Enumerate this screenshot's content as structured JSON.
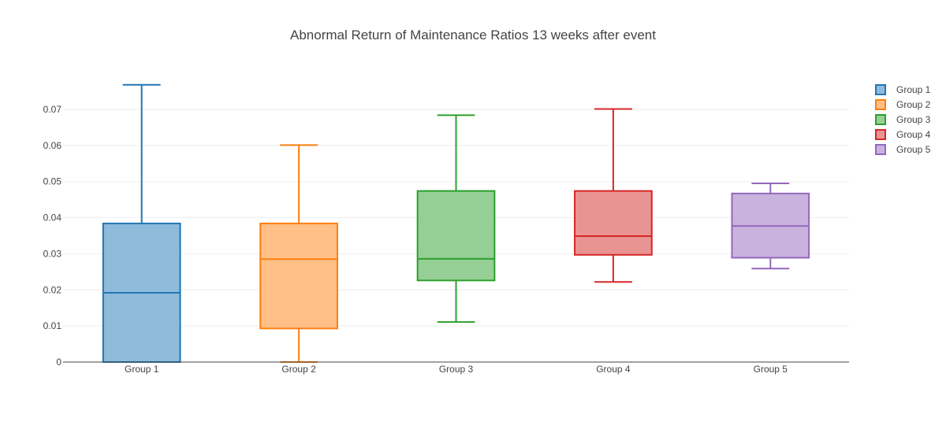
{
  "chart_data": {
    "type": "box",
    "title": "Abnormal Return of Maintenance Ratios 13 weeks after event",
    "xlabel": "",
    "ylabel": "",
    "ylim": [
      0,
      0.0785
    ],
    "yticks": [
      0,
      0.01,
      0.02,
      0.03,
      0.04,
      0.05,
      0.06,
      0.07
    ],
    "ytick_labels": [
      "0",
      "0.01",
      "0.02",
      "0.03",
      "0.04",
      "0.05",
      "0.06",
      "0.07"
    ],
    "grid": true,
    "legend_position": "top-right",
    "categories": [
      "Group 1",
      "Group 2",
      "Group 3",
      "Group 4",
      "Group 5"
    ],
    "series": [
      {
        "name": "Group 1",
        "color": "#1f77b4",
        "fill": "#8fbbdb",
        "min": 0.0,
        "q1": 0.0,
        "median": 0.0192,
        "q3": 0.0384,
        "max": 0.0768
      },
      {
        "name": "Group 2",
        "color": "#ff7f0e",
        "fill": "#ffbf86",
        "min": 0.0,
        "q1": 0.0093,
        "median": 0.0285,
        "q3": 0.0384,
        "max": 0.0601
      },
      {
        "name": "Group 3",
        "color": "#2ca02c",
        "fill": "#95cf95",
        "min": 0.0111,
        "q1": 0.0226,
        "median": 0.0286,
        "q3": 0.0474,
        "max": 0.0684
      },
      {
        "name": "Group 4",
        "color": "#d62728",
        "fill": "#ea9393",
        "min": 0.0222,
        "q1": 0.0297,
        "median": 0.0349,
        "q3": 0.0474,
        "max": 0.0701
      },
      {
        "name": "Group 5",
        "color": "#9467bd",
        "fill": "#c9b3de",
        "min": 0.0259,
        "q1": 0.0289,
        "median": 0.0377,
        "q3": 0.0467,
        "max": 0.0495
      }
    ]
  }
}
